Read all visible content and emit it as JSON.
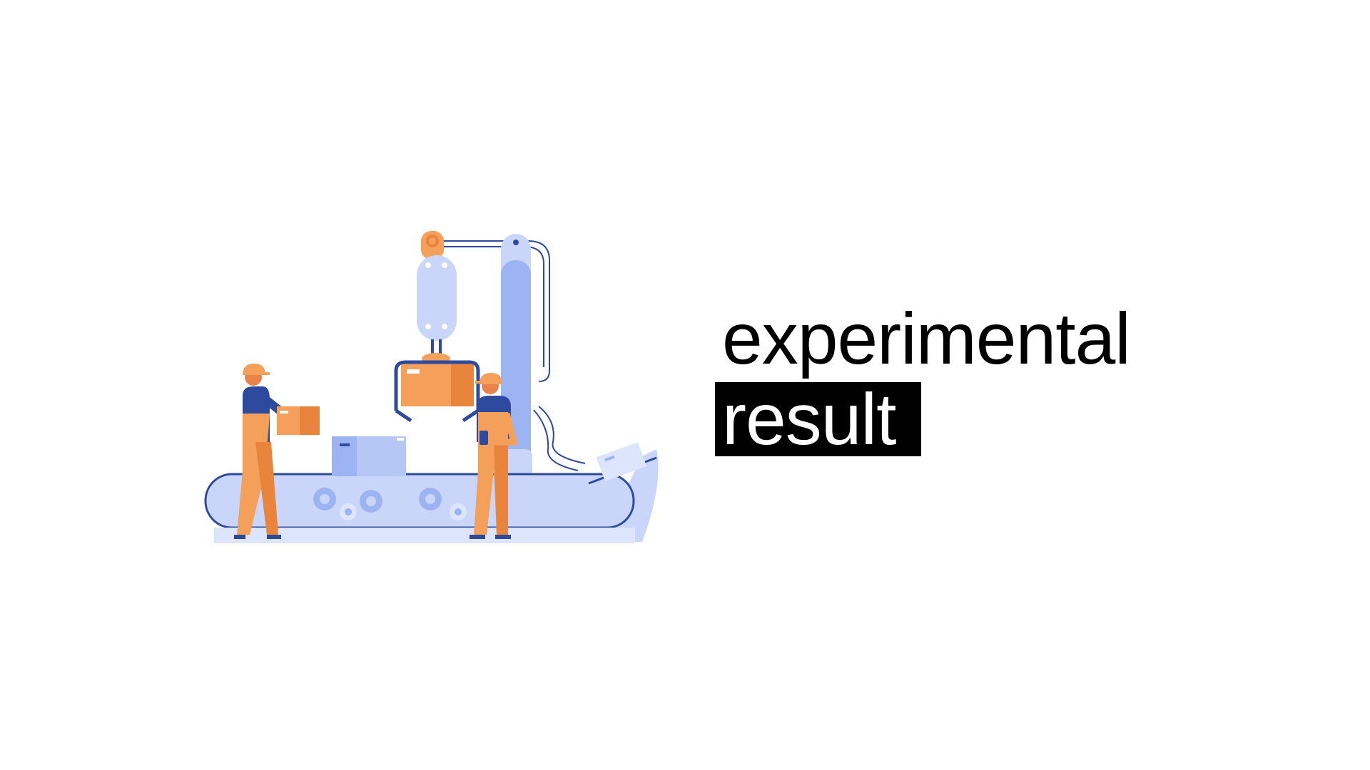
{
  "slide": {
    "title_line1": "experimental",
    "title_line2": "result"
  },
  "illustration": {
    "icon": "factory-conveyor-workers-illustration",
    "colors": {
      "orange": "#F5A05A",
      "orange_dark": "#E8843C",
      "blue_light": "#C9D6FA",
      "blue_mid": "#9DB4F2",
      "navy": "#2E4A9E",
      "skin": "#E8844A"
    }
  },
  "colors": {
    "background": "#FFFFFF",
    "text": "#000000",
    "highlight_bg": "#000000",
    "highlight_text": "#FFFFFF"
  }
}
